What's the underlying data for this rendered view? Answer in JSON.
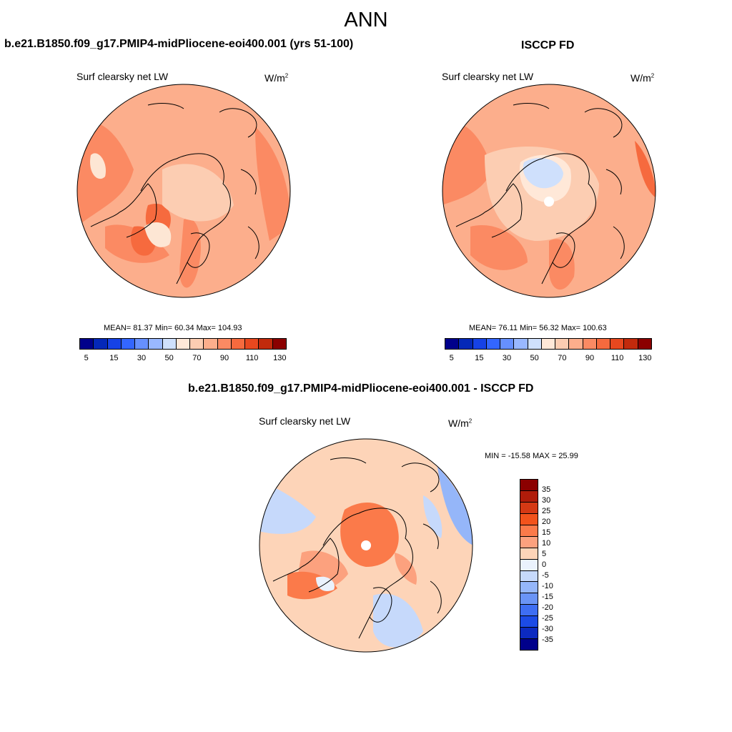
{
  "title": "ANN",
  "palette_top": [
    "#00008b",
    "#0428b8",
    "#1642e6",
    "#3366ff",
    "#6690ff",
    "#99b8ff",
    "#cfe0fc",
    "#ffe8d8",
    "#fccdb2",
    "#fcae8c",
    "#fb8a63",
    "#f66a3e",
    "#e8481f",
    "#c22a0c",
    "#8b0000"
  ],
  "palette_diff": [
    "#8b0000",
    "#b01c0a",
    "#d53914",
    "#f2531c",
    "#fb7a4a",
    "#fca17e",
    "#fdd4b8",
    "#eaf2fd",
    "#c6d9fb",
    "#95b6f9",
    "#6a94f6",
    "#3e6ef3",
    "#1c4be6",
    "#0c2ac0",
    "#00008b"
  ],
  "panels": [
    {
      "case_title": "b.e21.B1850.f09_g17.PMIP4-midPliocene-eoi400.001 (yrs 51-100)",
      "variable": "Surf clearsky net LW",
      "units": "W/m",
      "units_sup": "2",
      "stats": "MEAN=  81.37  Min=  60.34  Max= 104.93",
      "ticks": [
        "5",
        "15",
        "30",
        "50",
        "70",
        "90",
        "110",
        "130"
      ]
    },
    {
      "case_title": "ISCCP FD",
      "variable": "Surf clearsky net LW",
      "units": "W/m",
      "units_sup": "2",
      "stats": "MEAN=  76.11  Min=  56.32  Max= 100.63",
      "ticks": [
        "5",
        "15",
        "30",
        "50",
        "70",
        "90",
        "110",
        "130"
      ]
    }
  ],
  "diff": {
    "case_title": "b.e21.B1850.f09_g17.PMIP4-midPliocene-eoi400.001 - ISCCP FD",
    "variable": "Surf clearsky net LW",
    "units": "W/m",
    "units_sup": "2",
    "stats": "MIN = -15.58 MAX =  25.99",
    "ticks": [
      "35",
      "30",
      "25",
      "20",
      "15",
      "10",
      "5",
      "0",
      "-5",
      "-10",
      "-15",
      "-20",
      "-25",
      "-30",
      "-35"
    ]
  }
}
